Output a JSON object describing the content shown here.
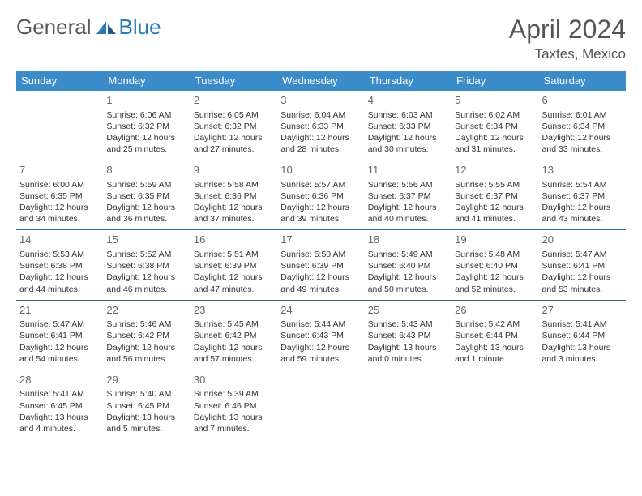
{
  "logo": {
    "word1": "General",
    "word2": "Blue"
  },
  "title": "April 2024",
  "location": "Taxtes, Mexico",
  "headers": [
    "Sunday",
    "Monday",
    "Tuesday",
    "Wednesday",
    "Thursday",
    "Friday",
    "Saturday"
  ],
  "header_bg": "#3b8bc9",
  "header_fg": "#ffffff",
  "row_border": "#2a6a9e",
  "weeks": [
    [
      {
        "n": "",
        "sr": "",
        "ss": "",
        "dl": ""
      },
      {
        "n": "1",
        "sr": "6:06 AM",
        "ss": "6:32 PM",
        "dl": "12 hours and 25 minutes."
      },
      {
        "n": "2",
        "sr": "6:05 AM",
        "ss": "6:32 PM",
        "dl": "12 hours and 27 minutes."
      },
      {
        "n": "3",
        "sr": "6:04 AM",
        "ss": "6:33 PM",
        "dl": "12 hours and 28 minutes."
      },
      {
        "n": "4",
        "sr": "6:03 AM",
        "ss": "6:33 PM",
        "dl": "12 hours and 30 minutes."
      },
      {
        "n": "5",
        "sr": "6:02 AM",
        "ss": "6:34 PM",
        "dl": "12 hours and 31 minutes."
      },
      {
        "n": "6",
        "sr": "6:01 AM",
        "ss": "6:34 PM",
        "dl": "12 hours and 33 minutes."
      }
    ],
    [
      {
        "n": "7",
        "sr": "6:00 AM",
        "ss": "6:35 PM",
        "dl": "12 hours and 34 minutes."
      },
      {
        "n": "8",
        "sr": "5:59 AM",
        "ss": "6:35 PM",
        "dl": "12 hours and 36 minutes."
      },
      {
        "n": "9",
        "sr": "5:58 AM",
        "ss": "6:36 PM",
        "dl": "12 hours and 37 minutes."
      },
      {
        "n": "10",
        "sr": "5:57 AM",
        "ss": "6:36 PM",
        "dl": "12 hours and 39 minutes."
      },
      {
        "n": "11",
        "sr": "5:56 AM",
        "ss": "6:37 PM",
        "dl": "12 hours and 40 minutes."
      },
      {
        "n": "12",
        "sr": "5:55 AM",
        "ss": "6:37 PM",
        "dl": "12 hours and 41 minutes."
      },
      {
        "n": "13",
        "sr": "5:54 AM",
        "ss": "6:37 PM",
        "dl": "12 hours and 43 minutes."
      }
    ],
    [
      {
        "n": "14",
        "sr": "5:53 AM",
        "ss": "6:38 PM",
        "dl": "12 hours and 44 minutes."
      },
      {
        "n": "15",
        "sr": "5:52 AM",
        "ss": "6:38 PM",
        "dl": "12 hours and 46 minutes."
      },
      {
        "n": "16",
        "sr": "5:51 AM",
        "ss": "6:39 PM",
        "dl": "12 hours and 47 minutes."
      },
      {
        "n": "17",
        "sr": "5:50 AM",
        "ss": "6:39 PM",
        "dl": "12 hours and 49 minutes."
      },
      {
        "n": "18",
        "sr": "5:49 AM",
        "ss": "6:40 PM",
        "dl": "12 hours and 50 minutes."
      },
      {
        "n": "19",
        "sr": "5:48 AM",
        "ss": "6:40 PM",
        "dl": "12 hours and 52 minutes."
      },
      {
        "n": "20",
        "sr": "5:47 AM",
        "ss": "6:41 PM",
        "dl": "12 hours and 53 minutes."
      }
    ],
    [
      {
        "n": "21",
        "sr": "5:47 AM",
        "ss": "6:41 PM",
        "dl": "12 hours and 54 minutes."
      },
      {
        "n": "22",
        "sr": "5:46 AM",
        "ss": "6:42 PM",
        "dl": "12 hours and 56 minutes."
      },
      {
        "n": "23",
        "sr": "5:45 AM",
        "ss": "6:42 PM",
        "dl": "12 hours and 57 minutes."
      },
      {
        "n": "24",
        "sr": "5:44 AM",
        "ss": "6:43 PM",
        "dl": "12 hours and 59 minutes."
      },
      {
        "n": "25",
        "sr": "5:43 AM",
        "ss": "6:43 PM",
        "dl": "13 hours and 0 minutes."
      },
      {
        "n": "26",
        "sr": "5:42 AM",
        "ss": "6:44 PM",
        "dl": "13 hours and 1 minute."
      },
      {
        "n": "27",
        "sr": "5:41 AM",
        "ss": "6:44 PM",
        "dl": "13 hours and 3 minutes."
      }
    ],
    [
      {
        "n": "28",
        "sr": "5:41 AM",
        "ss": "6:45 PM",
        "dl": "13 hours and 4 minutes."
      },
      {
        "n": "29",
        "sr": "5:40 AM",
        "ss": "6:45 PM",
        "dl": "13 hours and 5 minutes."
      },
      {
        "n": "30",
        "sr": "5:39 AM",
        "ss": "6:46 PM",
        "dl": "13 hours and 7 minutes."
      },
      {
        "n": "",
        "sr": "",
        "ss": "",
        "dl": ""
      },
      {
        "n": "",
        "sr": "",
        "ss": "",
        "dl": ""
      },
      {
        "n": "",
        "sr": "",
        "ss": "",
        "dl": ""
      },
      {
        "n": "",
        "sr": "",
        "ss": "",
        "dl": ""
      }
    ]
  ],
  "labels": {
    "sunrise": "Sunrise: ",
    "sunset": "Sunset: ",
    "daylight": "Daylight: "
  }
}
